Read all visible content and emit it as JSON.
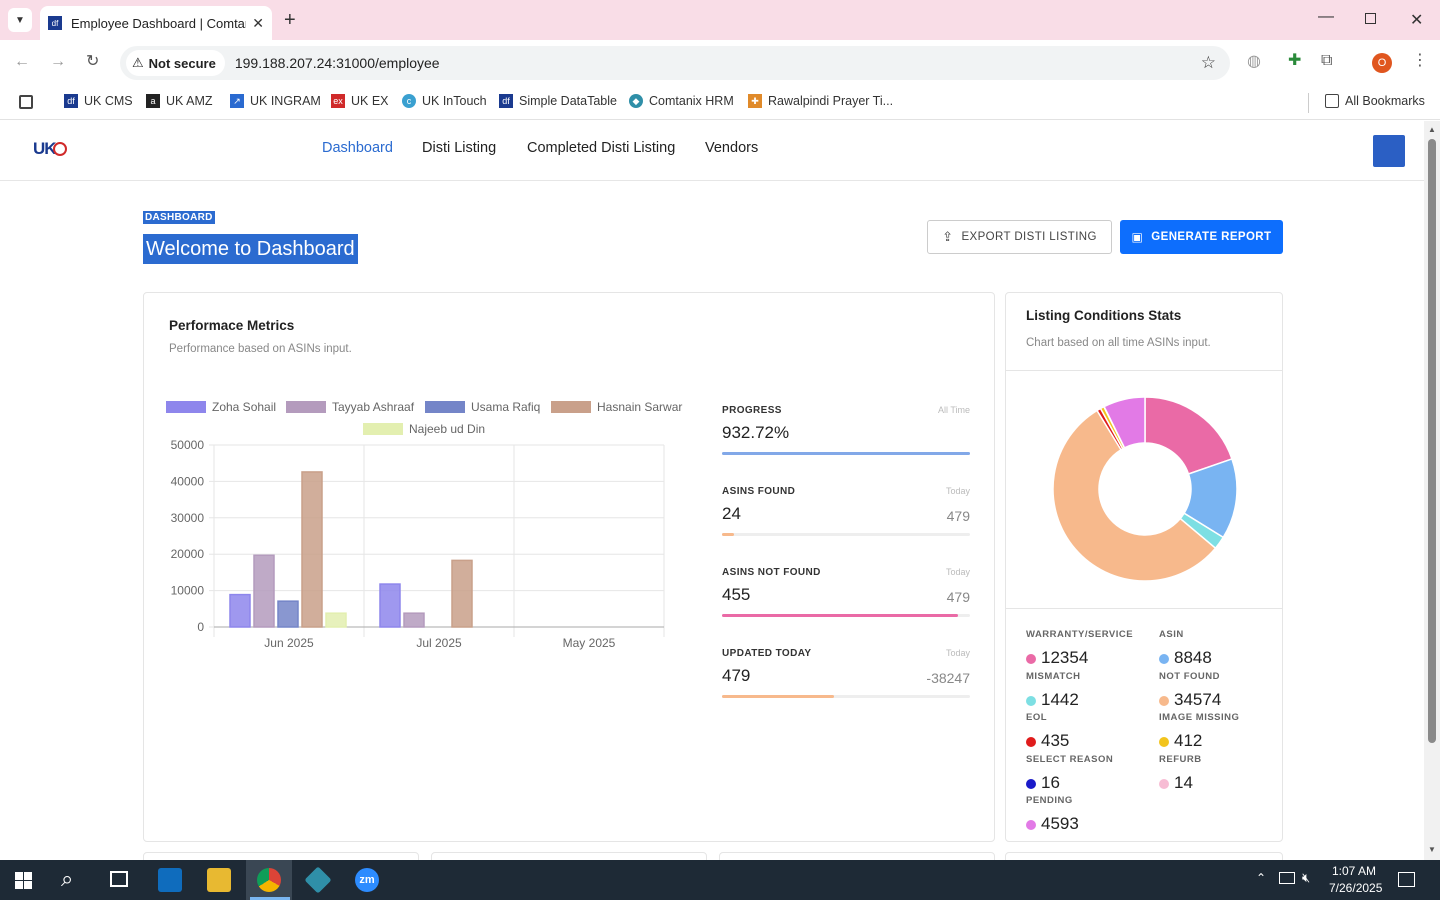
{
  "browser": {
    "tab_title": "Employee Dashboard | Comtanix",
    "not_secure": "Not secure",
    "url": "199.188.207.24:31000/employee",
    "profile_initial": "O",
    "bookmarks": [
      "UK CMS",
      "UK AMZ",
      "UK INGRAM",
      "UK EX",
      "UK InTouch",
      "Simple DataTable",
      "Comtanix HRM",
      "Rawalpindi Prayer Ti..."
    ],
    "all_bookmarks": "All Bookmarks"
  },
  "app": {
    "logo": "UK",
    "nav": [
      "Dashboard",
      "Disti Listing",
      "Completed Disti Listing",
      "Vendors"
    ],
    "breadcrumb": "DASHBOARD",
    "page_title": "Welcome to Dashboard",
    "export_label": "EXPORT DISTI LISTING",
    "generate_label": "GENERATE REPORT"
  },
  "performance": {
    "title": "Performace Metrics",
    "subtitle": "Performance based on ASINs input.",
    "metrics": [
      {
        "label": "PROGRESS",
        "tag": "All Time",
        "value": "932.72%",
        "total": "",
        "fill": 1.0,
        "color": "#82a8e8"
      },
      {
        "label": "ASINS FOUND",
        "tag": "Today",
        "value": "24",
        "total": "479",
        "fill": 0.05,
        "color": "#f7b98c"
      },
      {
        "label": "ASINS NOT FOUND",
        "tag": "Today",
        "value": "455",
        "total": "479",
        "fill": 0.95,
        "color": "#ea6aa6"
      },
      {
        "label": "UPDATED TODAY",
        "tag": "Today",
        "value": "479",
        "total": "-38247",
        "fill": 0.45,
        "color": "#f7b98c"
      }
    ]
  },
  "chart_data": {
    "type": "bar",
    "categories": [
      "Jun 2025",
      "Jul 2025",
      "May 2025"
    ],
    "yticks": [
      "50000",
      "40000",
      "30000",
      "20000",
      "10000",
      "0"
    ],
    "ylim": [
      0,
      50000
    ],
    "legend_position": "top",
    "series": [
      {
        "name": "Zoha Sohail",
        "color": "#8e86ec",
        "values": [
          8900,
          11800,
          0
        ]
      },
      {
        "name": "Tayyab Ashraaf",
        "color": "#b49bbd",
        "values": [
          19700,
          3800,
          0
        ]
      },
      {
        "name": "Usama Rafiq",
        "color": "#7485c8",
        "values": [
          7100,
          0,
          0
        ]
      },
      {
        "name": "Hasnain Sarwar",
        "color": "#c9a08a",
        "values": [
          42600,
          18300,
          0
        ]
      },
      {
        "name": "Najeeb ud Din",
        "color": "#e3efb0",
        "values": [
          3800,
          0,
          0
        ]
      }
    ]
  },
  "listing": {
    "title": "Listing Conditions Stats",
    "subtitle": "Chart based on all time ASINs input.",
    "stats": [
      {
        "label": "WARRANTY/SERVICE",
        "value": "12354",
        "color": "#ea6aa6"
      },
      {
        "label": "ASIN",
        "value": "8848",
        "color": "#79b4f2"
      },
      {
        "label": "MISMATCH",
        "value": "1442",
        "color": "#7ddfe3"
      },
      {
        "label": "NOT FOUND",
        "value": "34574",
        "color": "#f7b98c"
      },
      {
        "label": "EOL",
        "value": "435",
        "color": "#e01c1c"
      },
      {
        "label": "IMAGE MISSING",
        "value": "412",
        "color": "#f2c41d"
      },
      {
        "label": "SELECT REASON",
        "value": "16",
        "color": "#1a1ac9"
      },
      {
        "label": "REFURB",
        "value": "14",
        "color": "#f7bcd4"
      },
      {
        "label": "PENDING",
        "value": "4593",
        "color": "#e27ae6"
      }
    ],
    "donut_order": [
      0,
      1,
      2,
      3,
      4,
      5,
      6,
      7,
      8
    ]
  },
  "taskbar": {
    "time": "1:07 AM",
    "date": "7/26/2025"
  }
}
